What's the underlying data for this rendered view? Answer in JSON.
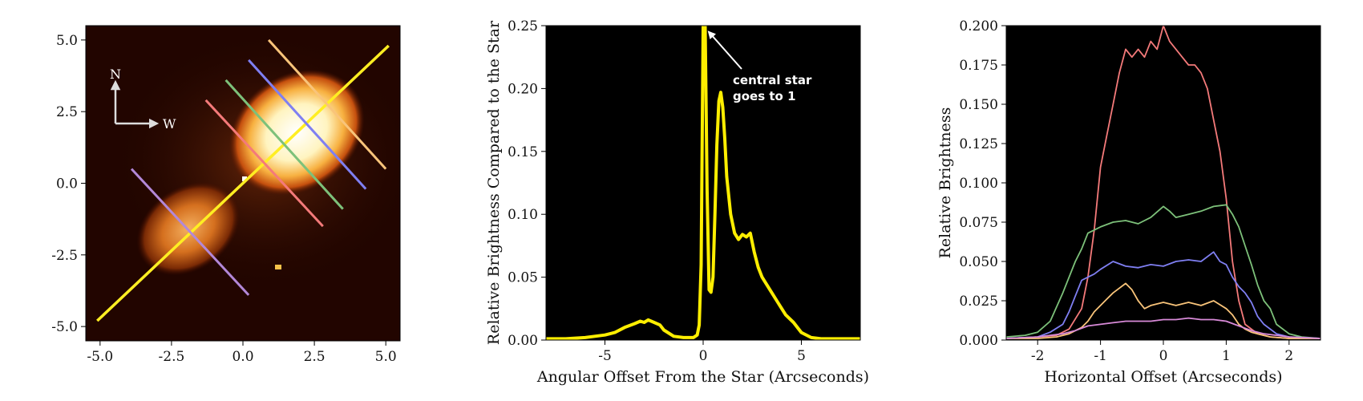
{
  "chart_data": [
    {
      "type": "image",
      "xlim": [
        -5.5,
        5.5
      ],
      "ylim": [
        -5.5,
        5.5
      ],
      "xticks": [
        -5.0,
        -2.5,
        0.0,
        2.5,
        5.0
      ],
      "yticks": [
        -5.0,
        -2.5,
        0.0,
        2.5,
        5.0
      ],
      "xtick_labels": [
        "-5.0",
        "-2.5",
        "0.0",
        "2.5",
        "5.0"
      ],
      "ytick_labels": [
        "-5.0",
        "-2.5",
        "0.0",
        "2.5",
        "5.0"
      ],
      "compass": {
        "north": "N",
        "west": "W"
      },
      "lines": [
        {
          "color": "#ffee22",
          "from": [
            -5.1,
            -4.8
          ],
          "to": [
            5.1,
            4.8
          ]
        },
        {
          "color": "#b388d8",
          "from": [
            -3.9,
            0.5
          ],
          "to": [
            0.2,
            -3.9
          ]
        },
        {
          "color": "#f47a7a",
          "from": [
            -1.3,
            2.9
          ],
          "to": [
            2.8,
            -1.5
          ]
        },
        {
          "color": "#7dc17a",
          "from": [
            -0.6,
            3.6
          ],
          "to": [
            3.5,
            -0.9
          ]
        },
        {
          "color": "#7f7ff2",
          "from": [
            0.2,
            4.3
          ],
          "to": [
            4.3,
            -0.2
          ]
        },
        {
          "color": "#f9c47a",
          "from": [
            0.9,
            5.0
          ],
          "to": [
            5.0,
            0.5
          ]
        }
      ]
    },
    {
      "type": "line",
      "xlabel": "Angular Offset From the Star (Arcseconds)",
      "ylabel": "Relative Brightness Compared to the Star",
      "xlim": [
        -8,
        8
      ],
      "ylim": [
        0,
        0.25
      ],
      "xticks": [
        -5,
        0,
        5
      ],
      "yticks": [
        0.0,
        0.05,
        0.1,
        0.15,
        0.2,
        0.25
      ],
      "xtick_labels": [
        "-5",
        "0",
        "5"
      ],
      "ytick_labels": [
        "0.00",
        "0.05",
        "0.10",
        "0.15",
        "0.20",
        "0.25"
      ],
      "annotation": [
        "central star",
        "goes to 1"
      ],
      "series": [
        {
          "color": "#ffee00",
          "x": [
            -8,
            -7,
            -6,
            -5,
            -4.5,
            -4,
            -3.5,
            -3.2,
            -3,
            -2.8,
            -2.5,
            -2.2,
            -2,
            -1.5,
            -1,
            -0.5,
            -0.3,
            -0.2,
            -0.1,
            0,
            0.05,
            0.1,
            0.2,
            0.3,
            0.4,
            0.5,
            0.6,
            0.7,
            0.8,
            0.9,
            1.0,
            1.1,
            1.2,
            1.4,
            1.6,
            1.8,
            2.0,
            2.2,
            2.4,
            2.6,
            2.8,
            3.0,
            3.4,
            3.8,
            4.2,
            4.6,
            5.0,
            5.5,
            6,
            7,
            8
          ],
          "y": [
            0.001,
            0.001,
            0.002,
            0.004,
            0.006,
            0.01,
            0.013,
            0.015,
            0.014,
            0.016,
            0.014,
            0.012,
            0.008,
            0.003,
            0.002,
            0.002,
            0.004,
            0.012,
            0.06,
            0.25,
            0.25,
            0.25,
            0.12,
            0.04,
            0.038,
            0.05,
            0.1,
            0.155,
            0.19,
            0.197,
            0.185,
            0.16,
            0.13,
            0.1,
            0.085,
            0.08,
            0.084,
            0.082,
            0.085,
            0.07,
            0.058,
            0.05,
            0.04,
            0.03,
            0.02,
            0.014,
            0.006,
            0.002,
            0.001,
            0.001,
            0.001
          ]
        }
      ]
    },
    {
      "type": "line",
      "xlabel": "Horizontal Offset (Arcseconds)",
      "ylabel": "Relative Brightness",
      "xlim": [
        -2.5,
        2.5
      ],
      "ylim": [
        0,
        0.2
      ],
      "xticks": [
        -2,
        -1,
        0,
        1,
        2
      ],
      "yticks": [
        0.0,
        0.025,
        0.05,
        0.075,
        0.1,
        0.125,
        0.15,
        0.175,
        0.2
      ],
      "xtick_labels": [
        "-2",
        "-1",
        "0",
        "1",
        "2"
      ],
      "ytick_labels": [
        "0.000",
        "0.025",
        "0.050",
        "0.075",
        "0.100",
        "0.125",
        "0.150",
        "0.175",
        "0.200"
      ],
      "series": [
        {
          "color": "#f47a7a",
          "x": [
            -2.5,
            -2,
            -1.7,
            -1.5,
            -1.3,
            -1.2,
            -1.1,
            -1.0,
            -0.9,
            -0.8,
            -0.7,
            -0.6,
            -0.5,
            -0.4,
            -0.3,
            -0.2,
            -0.1,
            0,
            0.1,
            0.2,
            0.3,
            0.4,
            0.5,
            0.6,
            0.7,
            0.8,
            0.9,
            1.0,
            1.1,
            1.2,
            1.3,
            1.5,
            1.7,
            2,
            2.5
          ],
          "y": [
            0.001,
            0.002,
            0.003,
            0.007,
            0.02,
            0.04,
            0.07,
            0.11,
            0.13,
            0.15,
            0.17,
            0.185,
            0.18,
            0.185,
            0.18,
            0.19,
            0.185,
            0.2,
            0.19,
            0.185,
            0.18,
            0.175,
            0.175,
            0.17,
            0.16,
            0.14,
            0.12,
            0.09,
            0.05,
            0.025,
            0.01,
            0.004,
            0.002,
            0.001,
            0.001
          ]
        },
        {
          "color": "#7dc17a",
          "x": [
            -2.5,
            -2.2,
            -2,
            -1.8,
            -1.6,
            -1.4,
            -1.3,
            -1.2,
            -1.1,
            -1.0,
            -0.8,
            -0.6,
            -0.4,
            -0.2,
            0,
            0.1,
            0.2,
            0.4,
            0.6,
            0.8,
            1.0,
            1.1,
            1.2,
            1.3,
            1.4,
            1.5,
            1.6,
            1.7,
            1.8,
            2.0,
            2.2,
            2.5
          ],
          "y": [
            0.002,
            0.003,
            0.005,
            0.012,
            0.03,
            0.05,
            0.058,
            0.068,
            0.07,
            0.072,
            0.075,
            0.076,
            0.074,
            0.078,
            0.085,
            0.082,
            0.078,
            0.08,
            0.082,
            0.085,
            0.086,
            0.08,
            0.072,
            0.06,
            0.048,
            0.035,
            0.025,
            0.02,
            0.01,
            0.004,
            0.002,
            0.001
          ]
        },
        {
          "color": "#7f7ff2",
          "x": [
            -2.5,
            -2,
            -1.8,
            -1.6,
            -1.5,
            -1.4,
            -1.3,
            -1.2,
            -1.1,
            -1.0,
            -0.8,
            -0.6,
            -0.4,
            -0.2,
            0,
            0.2,
            0.4,
            0.6,
            0.8,
            0.9,
            1.0,
            1.1,
            1.2,
            1.3,
            1.4,
            1.5,
            1.6,
            1.8,
            2,
            2.5
          ],
          "y": [
            0.001,
            0.002,
            0.005,
            0.01,
            0.018,
            0.028,
            0.038,
            0.04,
            0.042,
            0.045,
            0.05,
            0.047,
            0.046,
            0.048,
            0.047,
            0.05,
            0.051,
            0.05,
            0.056,
            0.05,
            0.048,
            0.04,
            0.034,
            0.03,
            0.024,
            0.015,
            0.01,
            0.004,
            0.002,
            0.001
          ]
        },
        {
          "color": "#f9c47a",
          "x": [
            -2.5,
            -2,
            -1.7,
            -1.5,
            -1.3,
            -1.2,
            -1.1,
            -1.0,
            -0.9,
            -0.8,
            -0.7,
            -0.6,
            -0.5,
            -0.4,
            -0.3,
            -0.2,
            0,
            0.2,
            0.4,
            0.6,
            0.8,
            1.0,
            1.1,
            1.2,
            1.3,
            1.4,
            1.5,
            1.7,
            2,
            2.5
          ],
          "y": [
            0.001,
            0.001,
            0.002,
            0.004,
            0.008,
            0.012,
            0.018,
            0.022,
            0.026,
            0.03,
            0.033,
            0.036,
            0.032,
            0.025,
            0.02,
            0.022,
            0.024,
            0.022,
            0.024,
            0.022,
            0.025,
            0.02,
            0.016,
            0.01,
            0.007,
            0.005,
            0.004,
            0.002,
            0.001,
            0.001
          ]
        },
        {
          "color": "#d88ad8",
          "x": [
            -2.5,
            -2,
            -1.8,
            -1.6,
            -1.4,
            -1.2,
            -1.0,
            -0.8,
            -0.6,
            -0.4,
            -0.2,
            0,
            0.2,
            0.4,
            0.6,
            0.8,
            1.0,
            1.2,
            1.4,
            1.6,
            1.8,
            2,
            2.5
          ],
          "y": [
            0.001,
            0.002,
            0.003,
            0.004,
            0.006,
            0.009,
            0.01,
            0.011,
            0.012,
            0.012,
            0.012,
            0.013,
            0.013,
            0.014,
            0.013,
            0.013,
            0.012,
            0.009,
            0.006,
            0.004,
            0.003,
            0.002,
            0.001
          ]
        }
      ]
    }
  ]
}
